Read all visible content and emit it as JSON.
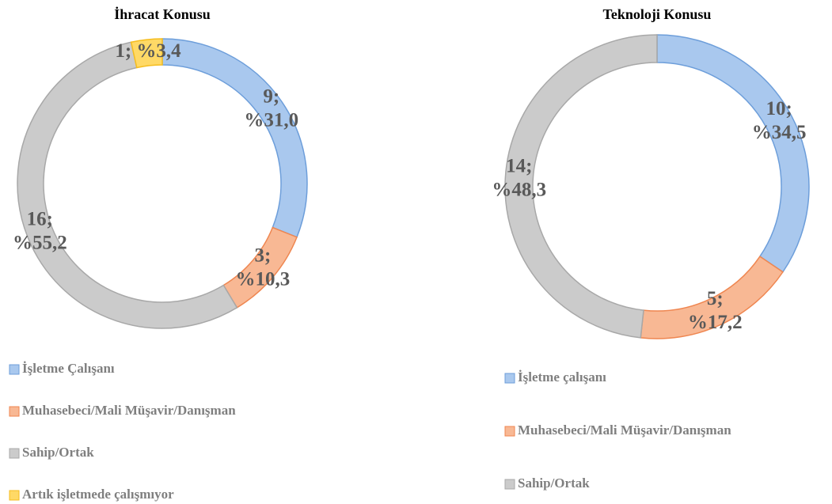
{
  "chart_data": [
    {
      "type": "donut",
      "title": "İhracat Konusu",
      "categories": [
        "İşletme Çalışanı",
        "Muhasebeci/Mali Müşavir/Danışman",
        "Sahip/Ortak",
        "Artık işletmede çalışmıyor"
      ],
      "values": [
        9,
        3,
        16,
        1
      ],
      "value_labels": [
        [
          "9;",
          "%31,0"
        ],
        [
          "3;",
          "%10,3"
        ],
        [
          "16;",
          "%55,2"
        ],
        [
          "1; %3,4"
        ]
      ],
      "colors": [
        "#a9c8ee",
        "#f8b894",
        "#cbcbcb",
        "#ffd966"
      ],
      "edge_colors": [
        "#6d9eda",
        "#ef8650",
        "#a8a8a8",
        "#f5bd1f"
      ]
    },
    {
      "type": "donut",
      "title": "Teknoloji Konusu",
      "categories": [
        "İşletme çalışanı",
        "Muhasebeci/Mali Müşavir/Danışman",
        "Sahip/Ortak"
      ],
      "values": [
        10,
        5,
        14
      ],
      "value_labels": [
        [
          "10;",
          "%34,5"
        ],
        [
          "5;",
          "%17,2"
        ],
        [
          "14;",
          "%48,3"
        ]
      ],
      "colors": [
        "#a9c8ee",
        "#f8b894",
        "#cbcbcb"
      ],
      "edge_colors": [
        "#6d9eda",
        "#ef8650",
        "#a8a8a8"
      ]
    }
  ]
}
